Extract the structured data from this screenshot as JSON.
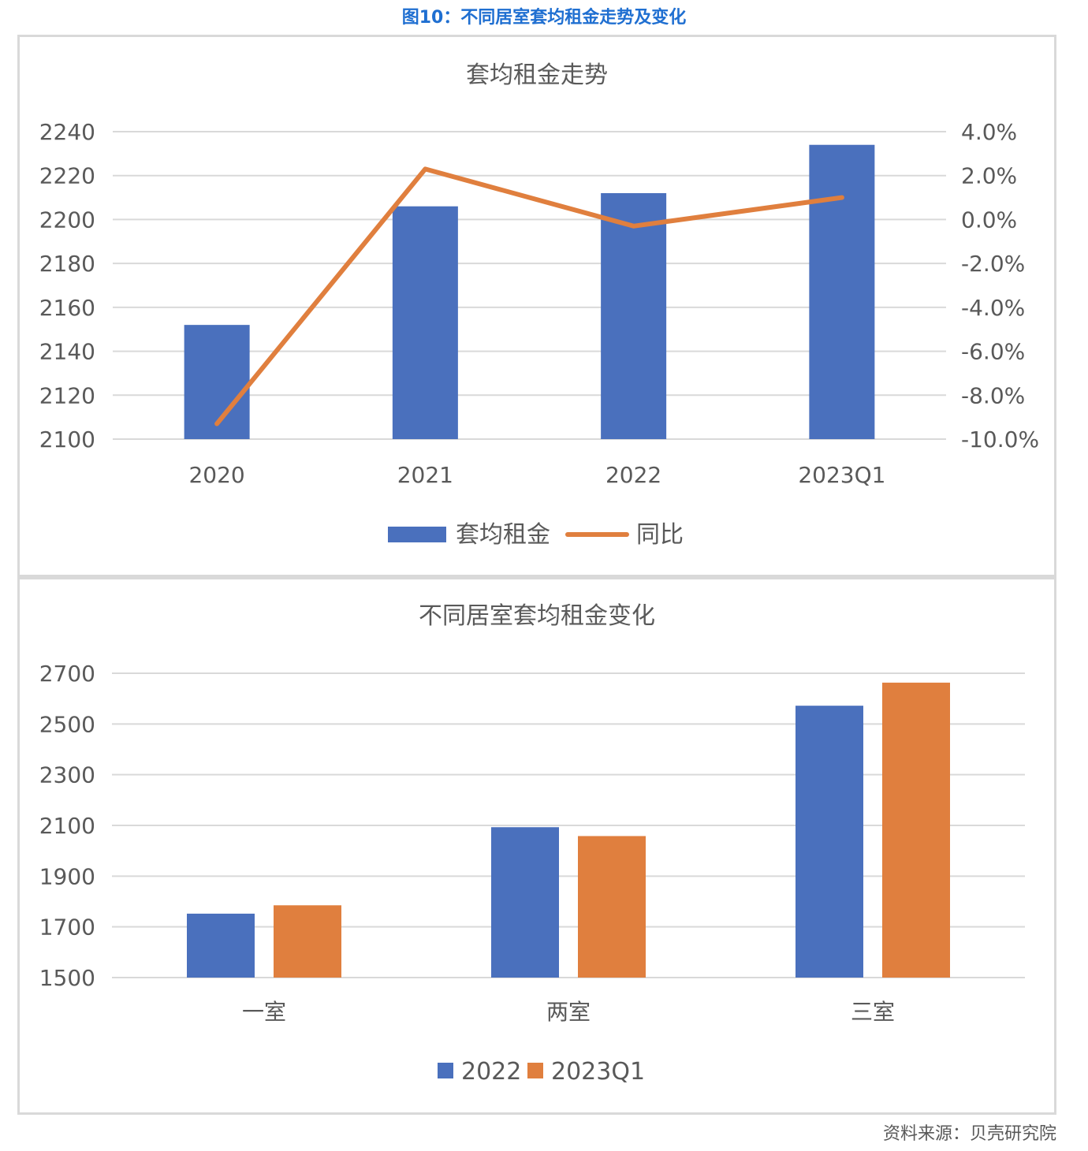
{
  "figure_title": "图10：不同居室套均租金走势及变化",
  "source": "资料来源：贝壳研究院",
  "colors": {
    "blue": "#4a70bd",
    "orange": "#e07f3e",
    "title_blue": "#1f6fd1",
    "grid": "#d9d9d9"
  },
  "chart_data": [
    {
      "type": "bar",
      "title": "套均租金走势",
      "categories": [
        "2020",
        "2021",
        "2022",
        "2023Q1"
      ],
      "series": [
        {
          "name": "套均租金",
          "type": "bar",
          "axis": "left",
          "values": [
            2152,
            2206,
            2212,
            2234
          ]
        },
        {
          "name": "同比",
          "type": "line",
          "axis": "right",
          "values": [
            -9.3,
            2.3,
            -0.3,
            1.0
          ]
        }
      ],
      "ylim": [
        2100,
        2240
      ],
      "yticks": [
        "2100",
        "2120",
        "2140",
        "2160",
        "2180",
        "2200",
        "2220",
        "2240"
      ],
      "y2lim": [
        -10.0,
        4.0
      ],
      "y2ticks": [
        "-10.0%",
        "-8.0%",
        "-6.0%",
        "-4.0%",
        "-2.0%",
        "0.0%",
        "2.0%",
        "4.0%"
      ],
      "grid": true,
      "legend": "bottom"
    },
    {
      "type": "bar",
      "title": "不同居室套均租金变化",
      "categories": [
        "一室",
        "两室",
        "三室"
      ],
      "series": [
        {
          "name": "2022",
          "values": [
            1752,
            2093,
            2572
          ]
        },
        {
          "name": "2023Q1",
          "values": [
            1785,
            2058,
            2663
          ]
        }
      ],
      "ylim": [
        1500,
        2700
      ],
      "yticks": [
        "1500",
        "1700",
        "1900",
        "2100",
        "2300",
        "2500",
        "2700"
      ],
      "grid": true,
      "legend": "bottom"
    }
  ]
}
